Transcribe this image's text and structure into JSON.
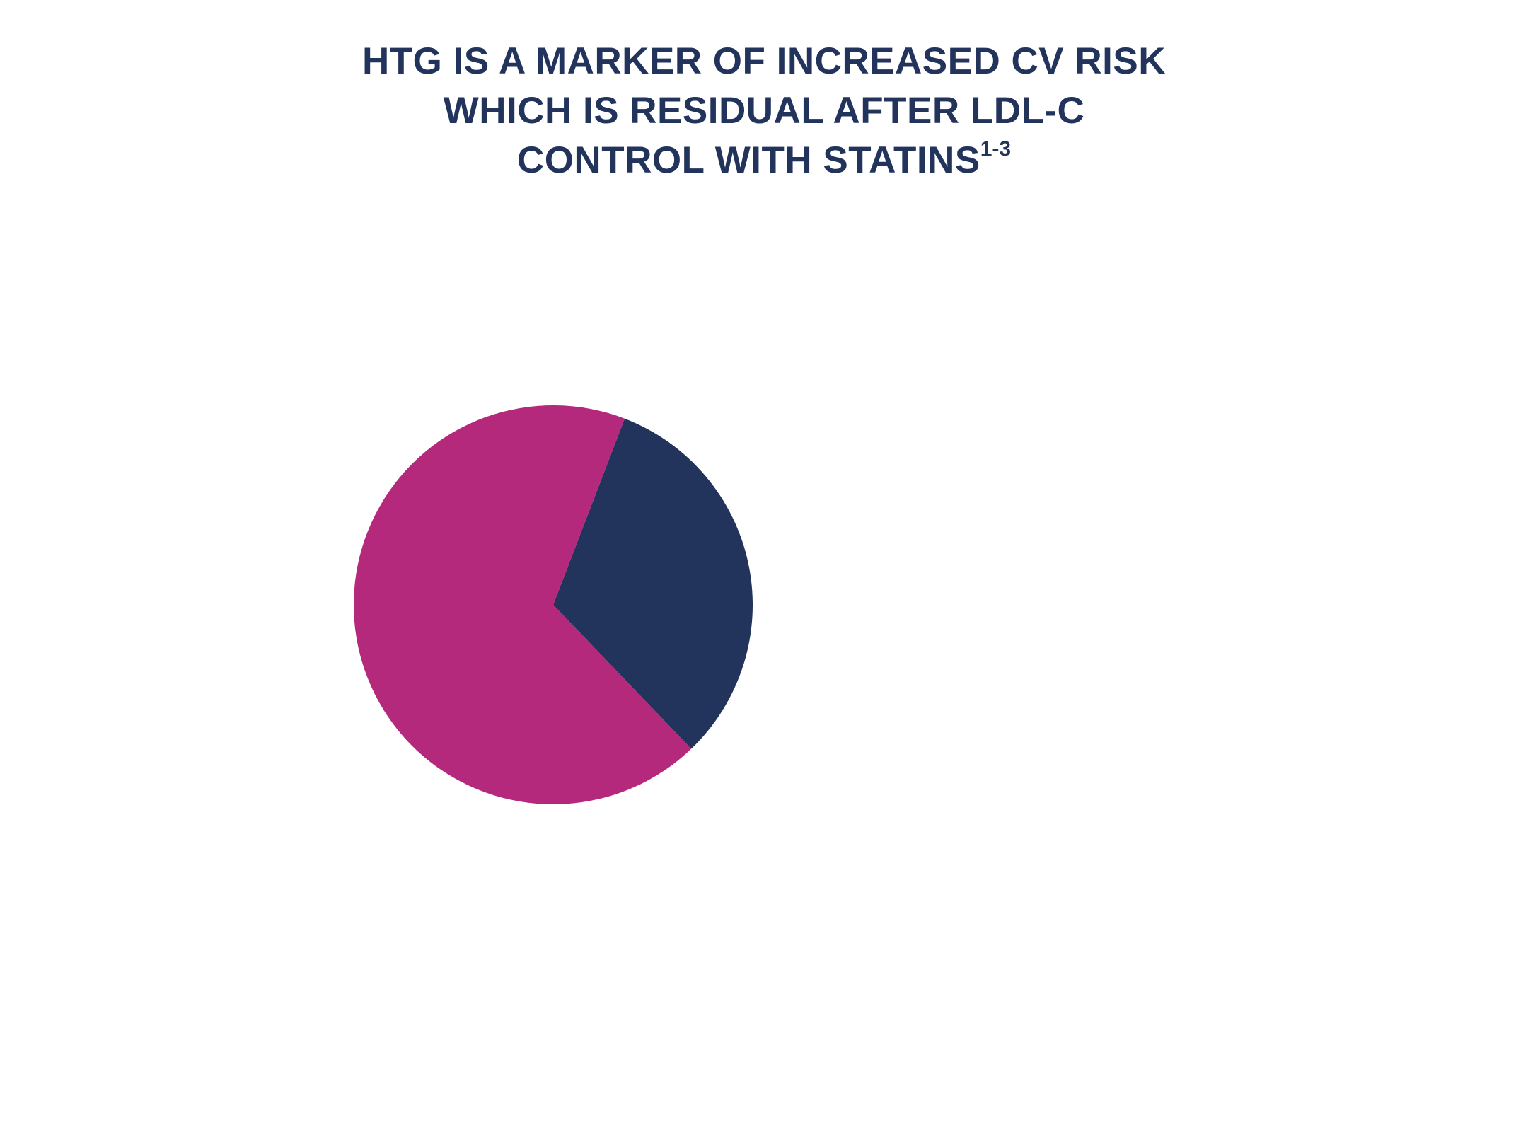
{
  "title": {
    "line1": "HTG IS A MARKER OF INCREASED CV RISK",
    "line2": "WHICH IS RESIDUAL AFTER LDL-C",
    "line3": "CONTROL WITH STATINS",
    "superscript": "1-3",
    "color": "#22335c"
  },
  "chart_data": {
    "type": "pie",
    "start_angle_deg": 21,
    "direction": "clockwise",
    "legend": "none",
    "data_labels": "none",
    "slices": [
      {
        "value": 32,
        "color": "#22335c"
      },
      {
        "value": 68,
        "color": "#b5297d"
      }
    ]
  }
}
